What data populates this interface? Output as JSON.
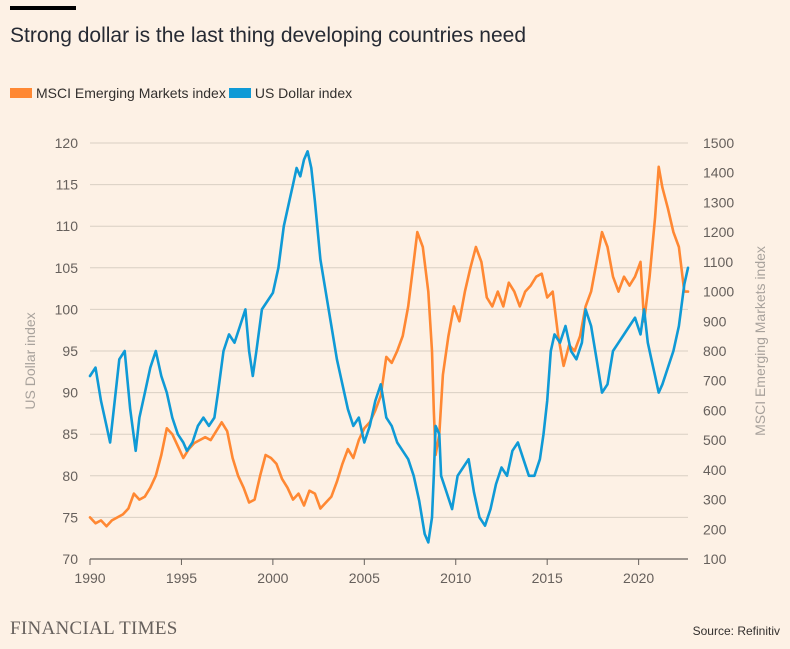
{
  "title": "Strong dollar is the last thing developing countries need",
  "legend": [
    {
      "label": "MSCI Emerging Markets index",
      "color": "#ff8833"
    },
    {
      "label": "US Dollar index",
      "color": "#0f9ad6"
    }
  ],
  "footer": {
    "logo": "FINANCIAL TIMES",
    "source": "Source: Refinitiv"
  },
  "chart_data": {
    "type": "line",
    "xlabel": "",
    "ylabel_left": "US Dollar index",
    "ylabel_right": "MSCI Emerging Markets index",
    "xlim": [
      1990,
      2022.7
    ],
    "xticks": [
      1990,
      1995,
      2000,
      2005,
      2010,
      2015,
      2020
    ],
    "ylim_left": [
      70,
      120
    ],
    "yticks_left": [
      70,
      75,
      80,
      85,
      90,
      95,
      100,
      105,
      110,
      115,
      120
    ],
    "ylim_right": [
      100,
      1500
    ],
    "yticks_right": [
      100,
      200,
      300,
      400,
      500,
      600,
      700,
      800,
      900,
      1000,
      1100,
      1200,
      1300,
      1400,
      1500
    ],
    "grid": true,
    "series": [
      {
        "name": "US Dollar index",
        "axis": "left",
        "color": "#0f9ad6",
        "x": [
          1990.0,
          1990.3,
          1990.6,
          1990.9,
          1991.1,
          1991.3,
          1991.6,
          1991.9,
          1992.2,
          1992.5,
          1992.7,
          1993.0,
          1993.3,
          1993.6,
          1993.9,
          1994.2,
          1994.5,
          1994.8,
          1995.1,
          1995.3,
          1995.6,
          1995.9,
          1996.2,
          1996.5,
          1996.8,
          1997.0,
          1997.3,
          1997.6,
          1997.9,
          1998.2,
          1998.5,
          1998.7,
          1998.9,
          1999.1,
          1999.4,
          1999.7,
          2000.0,
          2000.3,
          2000.6,
          2000.9,
          2001.1,
          2001.3,
          2001.5,
          2001.7,
          2001.9,
          2002.1,
          2002.3,
          2002.6,
          2002.9,
          2003.2,
          2003.5,
          2003.8,
          2004.1,
          2004.4,
          2004.7,
          2005.0,
          2005.3,
          2005.6,
          2005.9,
          2006.2,
          2006.5,
          2006.8,
          2007.1,
          2007.4,
          2007.7,
          2008.0,
          2008.3,
          2008.5,
          2008.7,
          2008.8,
          2008.9,
          2009.1,
          2009.2,
          2009.5,
          2009.8,
          2010.1,
          2010.4,
          2010.7,
          2011.0,
          2011.3,
          2011.6,
          2011.9,
          2012.2,
          2012.5,
          2012.8,
          2013.1,
          2013.4,
          2013.7,
          2014.0,
          2014.3,
          2014.6,
          2014.8,
          2015.0,
          2015.2,
          2015.4,
          2015.7,
          2016.0,
          2016.3,
          2016.6,
          2016.9,
          2017.1,
          2017.4,
          2017.7,
          2018.0,
          2018.3,
          2018.6,
          2018.9,
          2019.2,
          2019.5,
          2019.8,
          2020.1,
          2020.3,
          2020.5,
          2020.7,
          2020.9,
          2021.1,
          2021.3,
          2021.6,
          2021.9,
          2022.2,
          2022.5,
          2022.7
        ],
        "values": [
          92,
          93,
          89,
          86,
          84,
          88,
          94,
          95,
          88,
          83,
          87,
          90,
          93,
          95,
          92,
          90,
          87,
          85,
          84,
          83,
          84,
          86,
          87,
          86,
          87,
          90,
          95,
          97,
          96,
          98,
          100,
          95,
          92,
          95,
          100,
          101,
          102,
          105,
          110,
          113,
          115,
          117,
          116,
          118,
          119,
          117,
          113,
          106,
          102,
          98,
          94,
          91,
          88,
          86,
          87,
          84,
          86,
          89,
          91,
          87,
          86,
          84,
          83,
          82,
          80,
          77,
          73,
          72,
          75,
          80,
          86,
          85,
          80,
          78,
          76,
          80,
          81,
          82,
          78,
          75,
          74,
          76,
          79,
          81,
          80,
          83,
          84,
          82,
          80,
          80,
          82,
          85,
          89,
          95,
          97,
          96,
          98,
          95,
          94,
          96,
          100,
          98,
          94,
          90,
          91,
          95,
          96,
          97,
          98,
          99,
          97,
          100,
          96,
          94,
          92,
          90,
          91,
          93,
          95,
          98,
          103,
          105
        ]
      },
      {
        "name": "MSCI Emerging Markets index",
        "axis": "right",
        "color": "#ff8833",
        "x": [
          1990.0,
          1990.3,
          1990.6,
          1990.9,
          1991.2,
          1991.5,
          1991.8,
          1992.1,
          1992.4,
          1992.7,
          1993.0,
          1993.3,
          1993.6,
          1993.9,
          1994.2,
          1994.5,
          1994.8,
          1995.1,
          1995.4,
          1995.7,
          1996.0,
          1996.3,
          1996.6,
          1996.9,
          1997.2,
          1997.5,
          1997.8,
          1998.1,
          1998.4,
          1998.7,
          1999.0,
          1999.3,
          1999.6,
          1999.9,
          2000.2,
          2000.5,
          2000.8,
          2001.1,
          2001.4,
          2001.7,
          2002.0,
          2002.3,
          2002.6,
          2002.9,
          2003.2,
          2003.5,
          2003.8,
          2004.1,
          2004.4,
          2004.7,
          2005.0,
          2005.3,
          2005.6,
          2005.9,
          2006.2,
          2006.5,
          2006.8,
          2007.1,
          2007.4,
          2007.7,
          2007.9,
          2008.2,
          2008.5,
          2008.7,
          2008.8,
          2008.9,
          2009.1,
          2009.3,
          2009.6,
          2009.9,
          2010.2,
          2010.5,
          2010.8,
          2011.1,
          2011.4,
          2011.7,
          2012.0,
          2012.3,
          2012.6,
          2012.9,
          2013.2,
          2013.5,
          2013.8,
          2014.1,
          2014.4,
          2014.7,
          2015.0,
          2015.3,
          2015.6,
          2015.9,
          2016.2,
          2016.5,
          2016.8,
          2017.1,
          2017.4,
          2017.7,
          2018.0,
          2018.3,
          2018.6,
          2018.9,
          2019.2,
          2019.5,
          2019.8,
          2020.1,
          2020.3,
          2020.6,
          2020.9,
          2021.1,
          2021.3,
          2021.6,
          2021.9,
          2022.2,
          2022.5,
          2022.7
        ],
        "values": [
          240,
          220,
          230,
          210,
          230,
          240,
          250,
          270,
          320,
          300,
          310,
          340,
          380,
          450,
          540,
          520,
          480,
          440,
          470,
          490,
          500,
          510,
          500,
          530,
          560,
          530,
          440,
          380,
          340,
          290,
          300,
          380,
          450,
          440,
          420,
          370,
          340,
          300,
          320,
          280,
          330,
          320,
          270,
          290,
          310,
          360,
          420,
          470,
          440,
          500,
          540,
          560,
          600,
          650,
          780,
          760,
          800,
          850,
          950,
          1100,
          1200,
          1150,
          1000,
          800,
          600,
          450,
          520,
          720,
          850,
          950,
          900,
          1000,
          1080,
          1150,
          1100,
          980,
          950,
          1000,
          950,
          1030,
          1000,
          950,
          1000,
          1020,
          1050,
          1060,
          980,
          1000,
          850,
          750,
          820,
          800,
          850,
          950,
          1000,
          1100,
          1200,
          1150,
          1050,
          1000,
          1050,
          1020,
          1050,
          1100,
          900,
          1050,
          1250,
          1420,
          1350,
          1280,
          1200,
          1150,
          1000,
          1000
        ]
      }
    ]
  }
}
